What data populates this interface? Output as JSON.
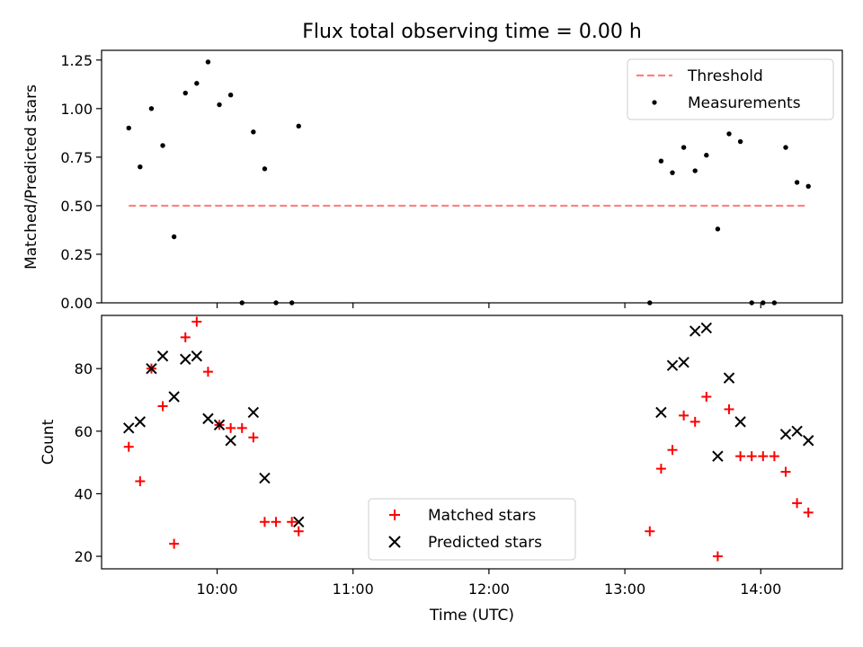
{
  "title": "Flux total observing time = 0.00 h",
  "chart_data": [
    {
      "type": "scatter",
      "panel": "top",
      "title": "Flux total observing time = 0.00 h",
      "xlabel": "",
      "ylabel": "Matched/Predicted stars",
      "ylim": [
        0,
        1.3
      ],
      "yticks": [
        0.0,
        0.25,
        0.5,
        0.75,
        1.0,
        1.25
      ],
      "ytick_labels": [
        "0.00",
        "0.25",
        "0.50",
        "0.75",
        "1.00",
        "1.25"
      ],
      "legend": {
        "placement": "top-right",
        "entries": [
          "Threshold",
          "Measurements"
        ]
      },
      "threshold": {
        "name": "Threshold",
        "value": 0.5,
        "x_from": "09:21",
        "x_to": "14:21",
        "color": "#ff8080"
      },
      "series": [
        {
          "name": "Measurements",
          "marker": "dot",
          "color": "#000000",
          "points": [
            [
              "09:21",
              0.9
            ],
            [
              "09:26",
              0.7
            ],
            [
              "09:31",
              1.0
            ],
            [
              "09:36",
              0.81
            ],
            [
              "09:41",
              0.34
            ],
            [
              "09:46",
              1.08
            ],
            [
              "09:51",
              1.13
            ],
            [
              "09:56",
              1.24
            ],
            [
              "10:01",
              1.02
            ],
            [
              "10:06",
              1.07
            ],
            [
              "10:11",
              0.0
            ],
            [
              "10:16",
              0.88
            ],
            [
              "10:21",
              0.69
            ],
            [
              "10:26",
              0.0
            ],
            [
              "10:33",
              0.0
            ],
            [
              "10:36",
              0.91
            ],
            [
              "13:11",
              0.0
            ],
            [
              "13:16",
              0.73
            ],
            [
              "13:21",
              0.67
            ],
            [
              "13:26",
              0.8
            ],
            [
              "13:31",
              0.68
            ],
            [
              "13:36",
              0.76
            ],
            [
              "13:41",
              0.38
            ],
            [
              "13:46",
              0.87
            ],
            [
              "13:51",
              0.83
            ],
            [
              "13:56",
              0.0
            ],
            [
              "14:01",
              0.0
            ],
            [
              "14:06",
              0.0
            ],
            [
              "14:11",
              0.8
            ],
            [
              "14:16",
              0.62
            ],
            [
              "14:21",
              0.6
            ]
          ]
        }
      ]
    },
    {
      "type": "scatter",
      "panel": "bottom",
      "xlabel": "Time (UTC)",
      "ylabel": "Count",
      "ylim": [
        16,
        97
      ],
      "yticks": [
        20,
        40,
        60,
        80
      ],
      "xticks": [
        "10:00",
        "11:00",
        "12:00",
        "13:00",
        "14:00"
      ],
      "xlim": [
        "09:09",
        "14:36"
      ],
      "legend": {
        "placement": "lower center",
        "entries": [
          "Matched stars",
          "Predicted stars"
        ]
      },
      "series": [
        {
          "name": "Matched stars",
          "marker": "plus",
          "color": "#ff0000",
          "points": [
            [
              "09:21",
              55
            ],
            [
              "09:26",
              44
            ],
            [
              "09:31",
              80
            ],
            [
              "09:36",
              68
            ],
            [
              "09:41",
              24
            ],
            [
              "09:46",
              90
            ],
            [
              "09:51",
              95
            ],
            [
              "09:56",
              79
            ],
            [
              "10:01",
              62
            ],
            [
              "10:06",
              61
            ],
            [
              "10:11",
              61
            ],
            [
              "10:16",
              58
            ],
            [
              "10:21",
              31
            ],
            [
              "10:26",
              31
            ],
            [
              "10:33",
              31
            ],
            [
              "10:36",
              28
            ],
            [
              "13:11",
              28
            ],
            [
              "13:16",
              48
            ],
            [
              "13:21",
              54
            ],
            [
              "13:26",
              65
            ],
            [
              "13:31",
              63
            ],
            [
              "13:36",
              71
            ],
            [
              "13:41",
              20
            ],
            [
              "13:46",
              67
            ],
            [
              "13:51",
              52
            ],
            [
              "13:56",
              52
            ],
            [
              "14:01",
              52
            ],
            [
              "14:06",
              52
            ],
            [
              "14:11",
              47
            ],
            [
              "14:16",
              37
            ],
            [
              "14:21",
              34
            ]
          ]
        },
        {
          "name": "Predicted stars",
          "marker": "x",
          "color": "#000000",
          "points": [
            [
              "09:21",
              61
            ],
            [
              "09:26",
              63
            ],
            [
              "09:31",
              80
            ],
            [
              "09:36",
              84
            ],
            [
              "09:41",
              71
            ],
            [
              "09:46",
              83
            ],
            [
              "09:51",
              84
            ],
            [
              "09:56",
              64
            ],
            [
              "10:01",
              62
            ],
            [
              "10:06",
              57
            ],
            [
              "10:16",
              66
            ],
            [
              "10:21",
              45
            ],
            [
              "10:36",
              31
            ],
            [
              "13:16",
              66
            ],
            [
              "13:21",
              81
            ],
            [
              "13:26",
              82
            ],
            [
              "13:31",
              92
            ],
            [
              "13:36",
              93
            ],
            [
              "13:41",
              52
            ],
            [
              "13:46",
              77
            ],
            [
              "13:51",
              63
            ],
            [
              "14:11",
              59
            ],
            [
              "14:16",
              60
            ],
            [
              "14:21",
              57
            ]
          ]
        }
      ]
    }
  ]
}
